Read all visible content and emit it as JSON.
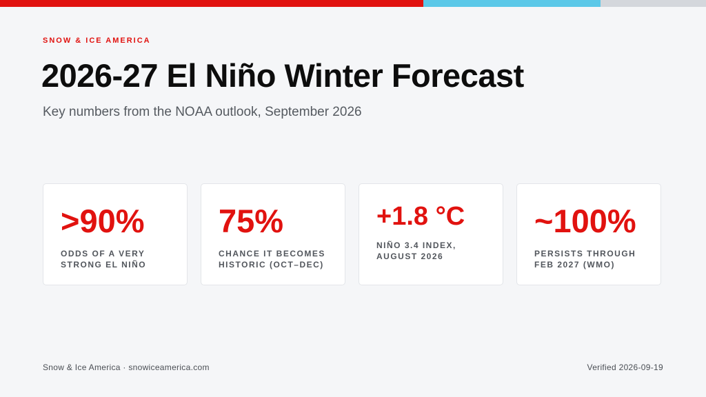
{
  "colors": {
    "accent_red": "#e1120f",
    "accent_blue": "#5bc8e8",
    "accent_grey": "#d4d7dc",
    "background": "#f5f6f8"
  },
  "header": {
    "brand": "SNOW & ICE AMERICA",
    "title": "2026-27 El Niño Winter Forecast",
    "subtitle": "Key numbers from the NOAA outlook, September 2026"
  },
  "stats": [
    {
      "value": ">90%",
      "label": "ODDS OF A VERY STRONG EL NIÑO"
    },
    {
      "value": "75%",
      "label": "CHANCE IT BECOMES HISTORIC (OCT–DEC)"
    },
    {
      "value": "+1.8 °C",
      "label": "NIÑO 3.4 INDEX, AUGUST 2026"
    },
    {
      "value": "~100%",
      "label": "PERSISTS THROUGH FEB 2027 (WMO)"
    }
  ],
  "footer": {
    "source": "Snow & Ice America · snowiceamerica.com",
    "verified": "Verified 2026-09-19"
  }
}
